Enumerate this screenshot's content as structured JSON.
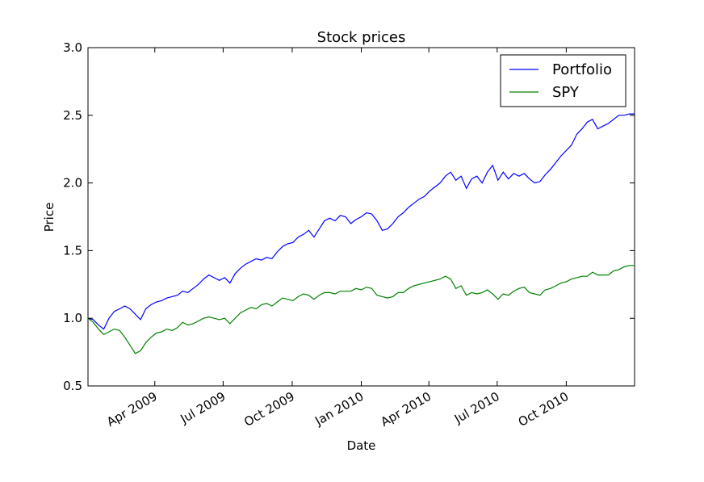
{
  "chart_data": {
    "type": "line",
    "title": "Stock prices",
    "xlabel": "Date",
    "ylabel": "Price",
    "xlim": [
      "2009-01-02",
      "2010-12-31"
    ],
    "ylim": [
      0.5,
      3.0
    ],
    "yticks": [
      0.5,
      1.0,
      1.5,
      2.0,
      2.5,
      3.0
    ],
    "ytick_labels": [
      "0.5",
      "1.0",
      "1.5",
      "2.0",
      "2.5",
      "3.0"
    ],
    "xticks": [
      "2009-04-01",
      "2009-07-01",
      "2009-10-01",
      "2010-01-01",
      "2010-04-01",
      "2010-07-01",
      "2010-10-01"
    ],
    "xtick_labels": [
      "Apr 2009",
      "Jul 2009",
      "Oct 2009",
      "Jan 2010",
      "Apr 2010",
      "Jul 2010",
      "Oct 2010"
    ],
    "grid": false,
    "legend_position": "top-right",
    "series": [
      {
        "name": "Portfolio",
        "color": "#0000ff",
        "points": [
          [
            "2009-01-02",
            1.0
          ],
          [
            "2009-01-09",
            0.99
          ],
          [
            "2009-01-16",
            0.95
          ],
          [
            "2009-01-23",
            0.92
          ],
          [
            "2009-01-30",
            1.0
          ],
          [
            "2009-02-06",
            1.05
          ],
          [
            "2009-02-13",
            1.07
          ],
          [
            "2009-02-20",
            1.09
          ],
          [
            "2009-02-27",
            1.07
          ],
          [
            "2009-03-06",
            1.03
          ],
          [
            "2009-03-13",
            0.99
          ],
          [
            "2009-03-20",
            1.07
          ],
          [
            "2009-03-27",
            1.1
          ],
          [
            "2009-04-03",
            1.12
          ],
          [
            "2009-04-10",
            1.13
          ],
          [
            "2009-04-17",
            1.15
          ],
          [
            "2009-04-24",
            1.16
          ],
          [
            "2009-05-01",
            1.17
          ],
          [
            "2009-05-08",
            1.2
          ],
          [
            "2009-05-15",
            1.19
          ],
          [
            "2009-05-22",
            1.22
          ],
          [
            "2009-05-29",
            1.25
          ],
          [
            "2009-06-05",
            1.29
          ],
          [
            "2009-06-12",
            1.32
          ],
          [
            "2009-06-19",
            1.3
          ],
          [
            "2009-06-26",
            1.28
          ],
          [
            "2009-07-03",
            1.3
          ],
          [
            "2009-07-10",
            1.26
          ],
          [
            "2009-07-17",
            1.33
          ],
          [
            "2009-07-24",
            1.37
          ],
          [
            "2009-07-31",
            1.4
          ],
          [
            "2009-08-07",
            1.42
          ],
          [
            "2009-08-14",
            1.44
          ],
          [
            "2009-08-21",
            1.43
          ],
          [
            "2009-08-28",
            1.45
          ],
          [
            "2009-09-04",
            1.44
          ],
          [
            "2009-09-11",
            1.49
          ],
          [
            "2009-09-18",
            1.53
          ],
          [
            "2009-09-25",
            1.55
          ],
          [
            "2009-10-02",
            1.56
          ],
          [
            "2009-10-09",
            1.6
          ],
          [
            "2009-10-16",
            1.62
          ],
          [
            "2009-10-23",
            1.65
          ],
          [
            "2009-10-30",
            1.6
          ],
          [
            "2009-11-06",
            1.66
          ],
          [
            "2009-11-13",
            1.72
          ],
          [
            "2009-11-20",
            1.74
          ],
          [
            "2009-11-27",
            1.72
          ],
          [
            "2009-12-04",
            1.76
          ],
          [
            "2009-12-11",
            1.75
          ],
          [
            "2009-12-18",
            1.7
          ],
          [
            "2009-12-25",
            1.73
          ],
          [
            "2010-01-01",
            1.75
          ],
          [
            "2010-01-08",
            1.78
          ],
          [
            "2010-01-15",
            1.77
          ],
          [
            "2010-01-22",
            1.72
          ],
          [
            "2010-01-29",
            1.65
          ],
          [
            "2010-02-05",
            1.66
          ],
          [
            "2010-02-12",
            1.7
          ],
          [
            "2010-02-19",
            1.75
          ],
          [
            "2010-02-26",
            1.78
          ],
          [
            "2010-03-05",
            1.82
          ],
          [
            "2010-03-12",
            1.85
          ],
          [
            "2010-03-19",
            1.88
          ],
          [
            "2010-03-26",
            1.9
          ],
          [
            "2010-04-02",
            1.94
          ],
          [
            "2010-04-09",
            1.97
          ],
          [
            "2010-04-16",
            2.0
          ],
          [
            "2010-04-23",
            2.05
          ],
          [
            "2010-04-30",
            2.08
          ],
          [
            "2010-05-07",
            2.02
          ],
          [
            "2010-05-14",
            2.05
          ],
          [
            "2010-05-21",
            1.96
          ],
          [
            "2010-05-28",
            2.03
          ],
          [
            "2010-06-04",
            2.05
          ],
          [
            "2010-06-11",
            2.0
          ],
          [
            "2010-06-18",
            2.08
          ],
          [
            "2010-06-25",
            2.13
          ],
          [
            "2010-07-02",
            2.02
          ],
          [
            "2010-07-09",
            2.08
          ],
          [
            "2010-07-16",
            2.03
          ],
          [
            "2010-07-23",
            2.07
          ],
          [
            "2010-07-30",
            2.05
          ],
          [
            "2010-08-06",
            2.07
          ],
          [
            "2010-08-13",
            2.03
          ],
          [
            "2010-08-20",
            2.0
          ],
          [
            "2010-08-27",
            2.01
          ],
          [
            "2010-09-03",
            2.06
          ],
          [
            "2010-09-10",
            2.1
          ],
          [
            "2010-09-17",
            2.15
          ],
          [
            "2010-09-24",
            2.2
          ],
          [
            "2010-10-01",
            2.24
          ],
          [
            "2010-10-08",
            2.28
          ],
          [
            "2010-10-15",
            2.36
          ],
          [
            "2010-10-22",
            2.4
          ],
          [
            "2010-10-29",
            2.45
          ],
          [
            "2010-11-05",
            2.47
          ],
          [
            "2010-11-12",
            2.4
          ],
          [
            "2010-11-19",
            2.42
          ],
          [
            "2010-11-26",
            2.44
          ],
          [
            "2010-12-03",
            2.47
          ],
          [
            "2010-12-10",
            2.5
          ],
          [
            "2010-12-17",
            2.5
          ],
          [
            "2010-12-24",
            2.51
          ],
          [
            "2010-12-31",
            2.51
          ]
        ]
      },
      {
        "name": "SPY",
        "color": "#008000",
        "points": [
          [
            "2009-01-02",
            1.0
          ],
          [
            "2009-01-09",
            0.97
          ],
          [
            "2009-01-16",
            0.92
          ],
          [
            "2009-01-23",
            0.88
          ],
          [
            "2009-01-30",
            0.9
          ],
          [
            "2009-02-06",
            0.92
          ],
          [
            "2009-02-13",
            0.91
          ],
          [
            "2009-02-20",
            0.86
          ],
          [
            "2009-02-27",
            0.8
          ],
          [
            "2009-03-06",
            0.74
          ],
          [
            "2009-03-13",
            0.76
          ],
          [
            "2009-03-20",
            0.82
          ],
          [
            "2009-03-27",
            0.86
          ],
          [
            "2009-04-03",
            0.89
          ],
          [
            "2009-04-10",
            0.9
          ],
          [
            "2009-04-17",
            0.92
          ],
          [
            "2009-04-24",
            0.91
          ],
          [
            "2009-05-01",
            0.93
          ],
          [
            "2009-05-08",
            0.97
          ],
          [
            "2009-05-15",
            0.95
          ],
          [
            "2009-05-22",
            0.96
          ],
          [
            "2009-05-29",
            0.98
          ],
          [
            "2009-06-05",
            1.0
          ],
          [
            "2009-06-12",
            1.01
          ],
          [
            "2009-06-19",
            1.0
          ],
          [
            "2009-06-26",
            0.99
          ],
          [
            "2009-07-03",
            1.0
          ],
          [
            "2009-07-10",
            0.96
          ],
          [
            "2009-07-17",
            1.0
          ],
          [
            "2009-07-24",
            1.04
          ],
          [
            "2009-07-31",
            1.06
          ],
          [
            "2009-08-07",
            1.08
          ],
          [
            "2009-08-14",
            1.07
          ],
          [
            "2009-08-21",
            1.1
          ],
          [
            "2009-08-28",
            1.11
          ],
          [
            "2009-09-04",
            1.09
          ],
          [
            "2009-09-11",
            1.12
          ],
          [
            "2009-09-18",
            1.15
          ],
          [
            "2009-09-25",
            1.14
          ],
          [
            "2009-10-02",
            1.13
          ],
          [
            "2009-10-09",
            1.16
          ],
          [
            "2009-10-16",
            1.18
          ],
          [
            "2009-10-23",
            1.17
          ],
          [
            "2009-10-30",
            1.14
          ],
          [
            "2009-11-06",
            1.17
          ],
          [
            "2009-11-13",
            1.19
          ],
          [
            "2009-11-20",
            1.19
          ],
          [
            "2009-11-27",
            1.18
          ],
          [
            "2009-12-04",
            1.2
          ],
          [
            "2009-12-11",
            1.2
          ],
          [
            "2009-12-18",
            1.2
          ],
          [
            "2009-12-25",
            1.22
          ],
          [
            "2010-01-01",
            1.21
          ],
          [
            "2010-01-08",
            1.23
          ],
          [
            "2010-01-15",
            1.22
          ],
          [
            "2010-01-22",
            1.17
          ],
          [
            "2010-01-29",
            1.16
          ],
          [
            "2010-02-05",
            1.15
          ],
          [
            "2010-02-12",
            1.16
          ],
          [
            "2010-02-19",
            1.19
          ],
          [
            "2010-02-26",
            1.19
          ],
          [
            "2010-03-05",
            1.22
          ],
          [
            "2010-03-12",
            1.24
          ],
          [
            "2010-03-19",
            1.25
          ],
          [
            "2010-03-26",
            1.26
          ],
          [
            "2010-04-02",
            1.27
          ],
          [
            "2010-04-09",
            1.28
          ],
          [
            "2010-04-16",
            1.29
          ],
          [
            "2010-04-23",
            1.31
          ],
          [
            "2010-04-30",
            1.29
          ],
          [
            "2010-05-07",
            1.22
          ],
          [
            "2010-05-14",
            1.24
          ],
          [
            "2010-05-21",
            1.17
          ],
          [
            "2010-05-28",
            1.19
          ],
          [
            "2010-06-04",
            1.18
          ],
          [
            "2010-06-11",
            1.19
          ],
          [
            "2010-06-18",
            1.21
          ],
          [
            "2010-06-25",
            1.18
          ],
          [
            "2010-07-02",
            1.14
          ],
          [
            "2010-07-09",
            1.18
          ],
          [
            "2010-07-16",
            1.17
          ],
          [
            "2010-07-23",
            1.2
          ],
          [
            "2010-07-30",
            1.22
          ],
          [
            "2010-08-06",
            1.23
          ],
          [
            "2010-08-13",
            1.19
          ],
          [
            "2010-08-20",
            1.18
          ],
          [
            "2010-08-27",
            1.17
          ],
          [
            "2010-09-03",
            1.21
          ],
          [
            "2010-09-10",
            1.22
          ],
          [
            "2010-09-17",
            1.24
          ],
          [
            "2010-09-24",
            1.26
          ],
          [
            "2010-10-01",
            1.27
          ],
          [
            "2010-10-08",
            1.29
          ],
          [
            "2010-10-15",
            1.3
          ],
          [
            "2010-10-22",
            1.31
          ],
          [
            "2010-10-29",
            1.31
          ],
          [
            "2010-11-05",
            1.34
          ],
          [
            "2010-11-12",
            1.32
          ],
          [
            "2010-11-19",
            1.32
          ],
          [
            "2010-11-26",
            1.32
          ],
          [
            "2010-12-03",
            1.35
          ],
          [
            "2010-12-10",
            1.36
          ],
          [
            "2010-12-17",
            1.38
          ],
          [
            "2010-12-24",
            1.39
          ],
          [
            "2010-12-31",
            1.39
          ]
        ]
      }
    ]
  }
}
